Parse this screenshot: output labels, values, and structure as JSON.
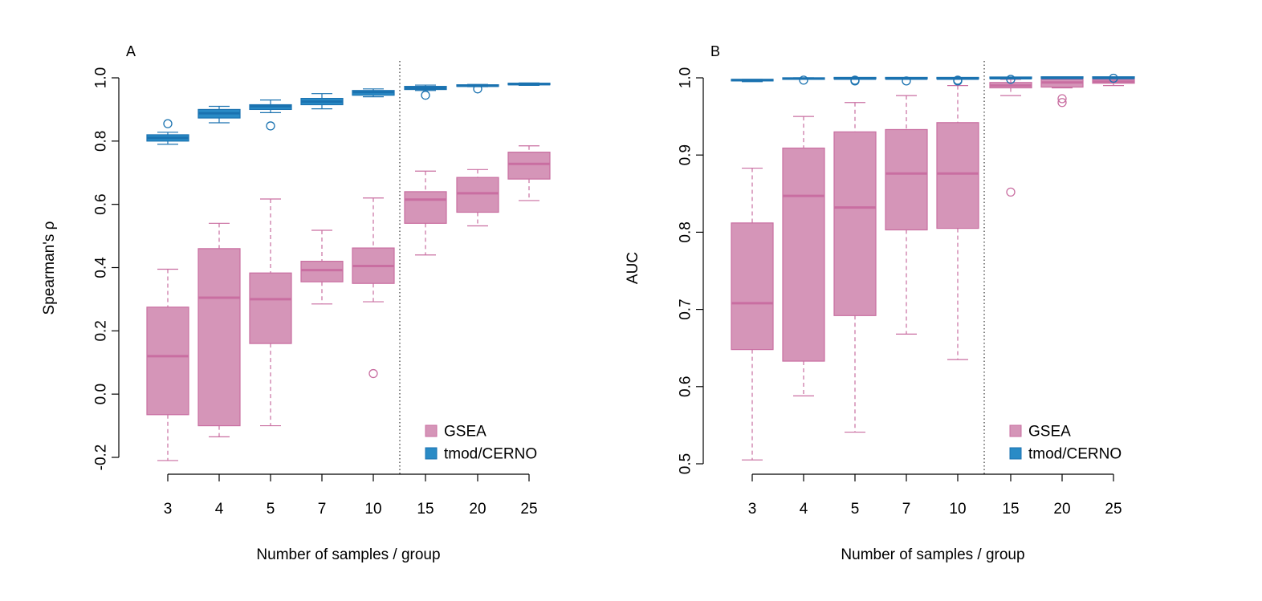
{
  "colors": {
    "gsea_fill": "#d595b8",
    "gsea_line": "#c96ea1",
    "cerno_fill": "#2a8bc6",
    "cerno_line": "#1a72b0",
    "axis": "#000000"
  },
  "chart_data": [
    {
      "type": "boxplot",
      "panel_label": "A",
      "xlabel": "Number of samples / group",
      "ylabel": "Spearman's ρ",
      "categories": [
        "3",
        "4",
        "5",
        "7",
        "10",
        "15",
        "20",
        "25"
      ],
      "ylim": [
        -0.2,
        1.0
      ],
      "yticks": [
        -0.2,
        0.0,
        0.2,
        0.4,
        0.6,
        0.8,
        1.0
      ],
      "ytick_labels": [
        "-0.2",
        "0.0",
        "0.2",
        "0.4",
        "0.6",
        "0.8",
        "1.0"
      ],
      "divider_after_category": "10",
      "grid": false,
      "legend": {
        "position": "bottom-right",
        "entries": [
          "GSEA",
          "tmod/CERNO"
        ]
      },
      "series": [
        {
          "name": "GSEA",
          "boxes": [
            {
              "whisker_low": -0.21,
              "q1": -0.065,
              "median": 0.12,
              "q3": 0.275,
              "whisker_high": 0.395,
              "outliers": []
            },
            {
              "whisker_low": -0.135,
              "q1": -0.1,
              "median": 0.305,
              "q3": 0.46,
              "whisker_high": 0.54,
              "outliers": []
            },
            {
              "whisker_low": -0.1,
              "q1": 0.16,
              "median": 0.3,
              "q3": 0.383,
              "whisker_high": 0.617,
              "outliers": []
            },
            {
              "whisker_low": 0.285,
              "q1": 0.355,
              "median": 0.392,
              "q3": 0.42,
              "whisker_high": 0.518,
              "outliers": []
            },
            {
              "whisker_low": 0.292,
              "q1": 0.35,
              "median": 0.405,
              "q3": 0.462,
              "whisker_high": 0.62,
              "outliers": [
                0.065
              ]
            },
            {
              "whisker_low": 0.44,
              "q1": 0.54,
              "median": 0.615,
              "q3": 0.64,
              "whisker_high": 0.705,
              "outliers": []
            },
            {
              "whisker_low": 0.532,
              "q1": 0.575,
              "median": 0.635,
              "q3": 0.685,
              "whisker_high": 0.71,
              "outliers": []
            },
            {
              "whisker_low": 0.612,
              "q1": 0.68,
              "median": 0.728,
              "q3": 0.765,
              "whisker_high": 0.785,
              "outliers": []
            }
          ]
        },
        {
          "name": "tmod/CERNO",
          "boxes": [
            {
              "whisker_low": 0.79,
              "q1": 0.8,
              "median": 0.81,
              "q3": 0.82,
              "whisker_high": 0.828,
              "outliers": [
                0.855
              ]
            },
            {
              "whisker_low": 0.858,
              "q1": 0.873,
              "median": 0.888,
              "q3": 0.9,
              "whisker_high": 0.91,
              "outliers": []
            },
            {
              "whisker_low": 0.89,
              "q1": 0.9,
              "median": 0.91,
              "q3": 0.915,
              "whisker_high": 0.93,
              "outliers": [
                0.848
              ]
            },
            {
              "whisker_low": 0.902,
              "q1": 0.915,
              "median": 0.925,
              "q3": 0.935,
              "whisker_high": 0.95,
              "outliers": []
            },
            {
              "whisker_low": 0.94,
              "q1": 0.945,
              "median": 0.955,
              "q3": 0.96,
              "whisker_high": 0.965,
              "outliers": []
            },
            {
              "whisker_low": 0.96,
              "q1": 0.963,
              "median": 0.968,
              "q3": 0.973,
              "whisker_high": 0.977,
              "outliers": [
                0.945
              ]
            },
            {
              "whisker_low": 0.972,
              "q1": 0.973,
              "median": 0.975,
              "q3": 0.977,
              "whisker_high": 0.979,
              "outliers": [
                0.965
              ]
            },
            {
              "whisker_low": 0.976,
              "q1": 0.978,
              "median": 0.98,
              "q3": 0.982,
              "whisker_high": 0.984,
              "outliers": []
            }
          ]
        }
      ]
    },
    {
      "type": "boxplot",
      "panel_label": "B",
      "xlabel": "Number of samples / group",
      "ylabel": "AUC",
      "categories": [
        "3",
        "4",
        "5",
        "7",
        "10",
        "15",
        "20",
        "25"
      ],
      "ylim": [
        0.5,
        1.0
      ],
      "yticks": [
        0.5,
        0.6,
        0.7,
        0.8,
        0.9,
        1.0
      ],
      "ytick_labels": [
        "0.5",
        "0.6",
        "0.7",
        "0.8",
        "0.9",
        "1.0"
      ],
      "divider_after_category": "10",
      "grid": false,
      "legend": {
        "position": "bottom-right",
        "entries": [
          "GSEA",
          "tmod/CERNO"
        ]
      },
      "series": [
        {
          "name": "GSEA",
          "boxes": [
            {
              "whisker_low": 0.505,
              "q1": 0.648,
              "median": 0.708,
              "q3": 0.812,
              "whisker_high": 0.883,
              "outliers": []
            },
            {
              "whisker_low": 0.588,
              "q1": 0.633,
              "median": 0.847,
              "q3": 0.909,
              "whisker_high": 0.95,
              "outliers": []
            },
            {
              "whisker_low": 0.541,
              "q1": 0.692,
              "median": 0.832,
              "q3": 0.93,
              "whisker_high": 0.968,
              "outliers": []
            },
            {
              "whisker_low": 0.668,
              "q1": 0.803,
              "median": 0.876,
              "q3": 0.933,
              "whisker_high": 0.977,
              "outliers": []
            },
            {
              "whisker_low": 0.635,
              "q1": 0.805,
              "median": 0.876,
              "q3": 0.942,
              "whisker_high": 0.99,
              "outliers": []
            },
            {
              "whisker_low": 0.977,
              "q1": 0.987,
              "median": 0.99,
              "q3": 0.994,
              "whisker_high": 0.998,
              "outliers": [
                0.852
              ]
            },
            {
              "whisker_low": 0.987,
              "q1": 0.988,
              "median": 0.994,
              "q3": 0.998,
              "whisker_high": 0.999,
              "outliers": [
                0.968,
                0.973
              ]
            },
            {
              "whisker_low": 0.99,
              "q1": 0.993,
              "median": 0.995,
              "q3": 0.998,
              "whisker_high": 0.999,
              "outliers": []
            }
          ]
        },
        {
          "name": "tmod/CERNO",
          "boxes": [
            {
              "whisker_low": 0.995,
              "q1": 0.996,
              "median": 0.997,
              "q3": 0.998,
              "whisker_high": 0.998,
              "outliers": []
            },
            {
              "whisker_low": 0.998,
              "q1": 0.998,
              "median": 0.999,
              "q3": 0.9995,
              "whisker_high": 1.0,
              "outliers": [
                0.997
              ]
            },
            {
              "whisker_low": 0.998,
              "q1": 0.9985,
              "median": 0.999,
              "q3": 0.9995,
              "whisker_high": 1.0,
              "outliers": [
                0.996,
                0.997
              ]
            },
            {
              "whisker_low": 0.998,
              "q1": 0.9985,
              "median": 0.999,
              "q3": 0.9995,
              "whisker_high": 1.0,
              "outliers": [
                0.996
              ]
            },
            {
              "whisker_low": 0.998,
              "q1": 0.9985,
              "median": 0.999,
              "q3": 0.9995,
              "whisker_high": 1.0,
              "outliers": [
                0.996,
                0.997
              ]
            },
            {
              "whisker_low": 0.9985,
              "q1": 0.999,
              "median": 0.9995,
              "q3": 1.0,
              "whisker_high": 1.0,
              "outliers": [
                0.998
              ]
            },
            {
              "whisker_low": 0.999,
              "q1": 0.9993,
              "median": 0.9997,
              "q3": 1.0,
              "whisker_high": 1.0,
              "outliers": []
            },
            {
              "whisker_low": 0.999,
              "q1": 0.9993,
              "median": 0.9997,
              "q3": 1.0,
              "whisker_high": 1.0,
              "outliers": [
                0.9995
              ]
            }
          ]
        }
      ]
    }
  ]
}
